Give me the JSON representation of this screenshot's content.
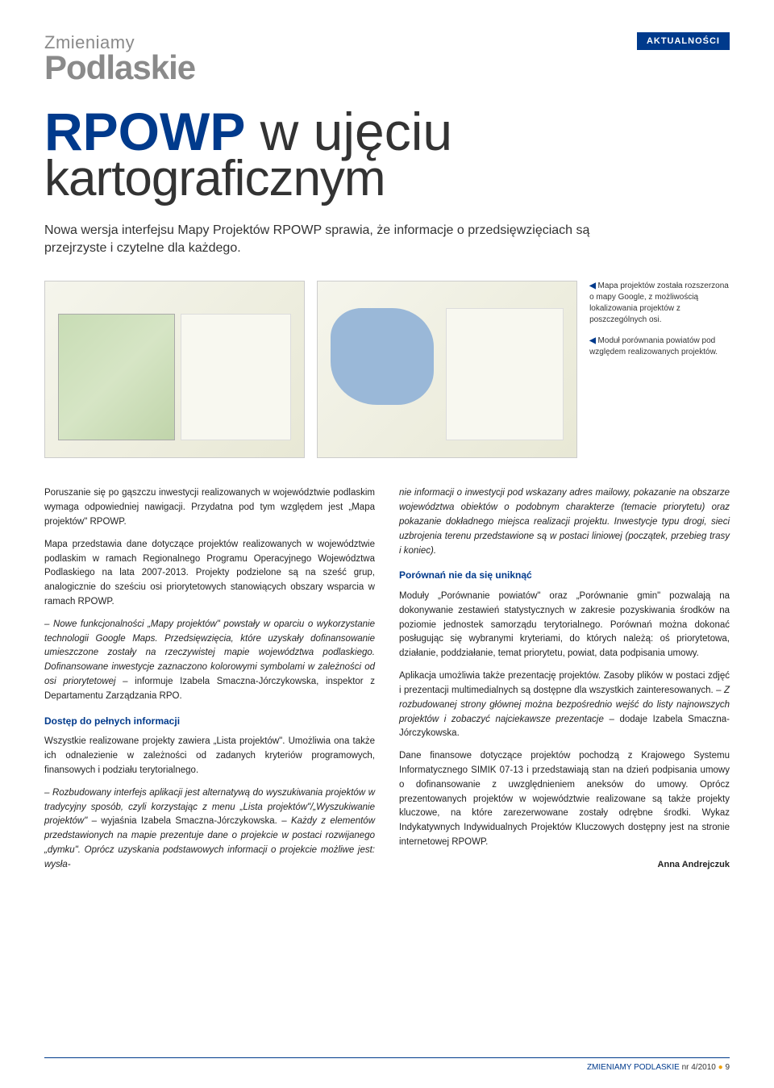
{
  "header": {
    "logo_top": "Zmieniamy",
    "logo_bottom": "Podlaskie",
    "section": "AKTUALNOŚCI"
  },
  "title": {
    "strong": "RPOWP",
    "light": " w ujęciu",
    "line2": "kartograficznym"
  },
  "lede": "Nowa wersja interfejsu Mapy Projektów RPOWP sprawia, że informacje o przedsięwzięciach są przejrzyste i czytelne dla każdego.",
  "captions": {
    "c1": "Mapa projektów została rozszerzona o mapy Google, z możliwością lokalizowania projektów z poszczególnych osi.",
    "c2": "Moduł porównania powiatów pod względem realizowanych projektów.",
    "arrow": "◀"
  },
  "body": {
    "left": {
      "p1": "Poruszanie się po gąszczu inwestycji realizowanych w województwie podlaskim wymaga odpowiedniej nawigacji. Przydatna pod tym względem jest „Mapa projektów\" RPOWP.",
      "p2": "Mapa przedstawia dane dotyczące projektów realizowanych w województwie podlaskim w ramach Regionalnego Programu Operacyjnego Województwa Podlaskiego na lata 2007-2013. Projekty podzielone są na sześć grup, analogicznie do sześciu osi priorytetowych stanowiących obszary wsparcia w ramach RPOWP.",
      "p3_italic": "– Nowe funkcjonalności „Mapy projektów\" powstały w oparciu o wykorzystanie technologii Google Maps. Przedsięwzięcia, które uzyskały dofinansowanie umieszczone zostały na rzeczywistej mapie województwa podlaskiego. Dofinansowane inwestycje zaznaczono kolorowymi symbolami w zależności od osi priorytetowej",
      "p3_tail": " – informuje Izabela Smaczna-Jórczykowska, inspektor z Departamentu Zarządzania RPO.",
      "sub1": "Dostęp do pełnych informacji",
      "p4": "Wszystkie realizowane projekty zawiera „Lista projektów\". Umożliwia ona także ich odnalezienie w zależności od zadanych kryteriów programowych, finansowych i podziału terytorialnego.",
      "p5_italic": "– Rozbudowany interfejs aplikacji jest alternatywą do wyszukiwania projektów w tradycyjny sposób, czyli korzystając z menu „Lista projektów\"/„Wyszukiwanie projektów\"",
      "p5_mid": " – wyjaśnia Izabela Smaczna-Jórczykowska. – ",
      "p5_italic2": "Każdy z elementów przedstawionych na mapie prezentuje dane o projekcie w postaci rozwijanego „dymku\". Oprócz uzyskania podstawowych informacji o projekcie możliwe jest: wysła-"
    },
    "right": {
      "p1_italic": "nie informacji o inwestycji pod wskazany adres mailowy, pokazanie na obszarze województwa obiektów o podobnym charakterze (temacie priorytetu) oraz pokazanie dokładnego miejsca realizacji projektu. Inwestycje typu drogi, sieci uzbrojenia terenu przedstawione są w postaci liniowej (początek, przebieg trasy i koniec).",
      "sub2": "Porównań nie da się uniknąć",
      "p2": "Moduły „Porównanie powiatów\" oraz „Porównanie gmin\" pozwalają na dokonywanie zestawień statystycznych w zakresie pozyskiwania środków na poziomie jednostek samorządu terytorialnego. Porównań można dokonać posługując się wybranymi kryteriami, do których należą: oś priorytetowa, działanie, poddziałanie, temat priorytetu, powiat, data podpisania umowy.",
      "p3a": "Aplikacja umożliwia także prezentację projektów. Zasoby plików w postaci zdjęć i prezentacji multimedialnych są dostępne dla wszystkich zainteresowanych. – ",
      "p3_italic": "Z rozbudowanej strony głównej można bezpośrednio wejść do listy najnowszych projektów i zobaczyć najciekawsze prezentacje",
      "p3b": " – dodaje Izabela Smaczna-Jórczykowska.",
      "p4": "Dane finansowe dotyczące projektów pochodzą z Krajowego Systemu Informatycznego SIMIK 07-13 i przedstawiają stan na dzień podpisania umowy o dofinansowanie z uwzględnieniem aneksów do umowy. Oprócz prezentowanych projektów w województwie realizowane są także projekty kluczowe, na które zarezerwowane zostały odrębne środki. Wykaz Indykatywnych Indywidualnych Projektów Kluczowych dostępny jest na stronie internetowej RPOWP.",
      "author": "Anna Andrejczuk"
    }
  },
  "footer": {
    "mag": "ZMIENIAMY PODLASKIE",
    "issue": "nr 4/2010",
    "page": "9"
  },
  "colors": {
    "brand_blue": "#003a8c",
    "logo_gray": "#8a8a8a",
    "accent_orange": "#f0a000",
    "text": "#222222",
    "page_bg": "#ffffff"
  },
  "typography": {
    "body_pt": 11.5,
    "title_pt": 66,
    "lede_pt": 16,
    "caption_pt": 10,
    "subhead_pt": 12
  }
}
